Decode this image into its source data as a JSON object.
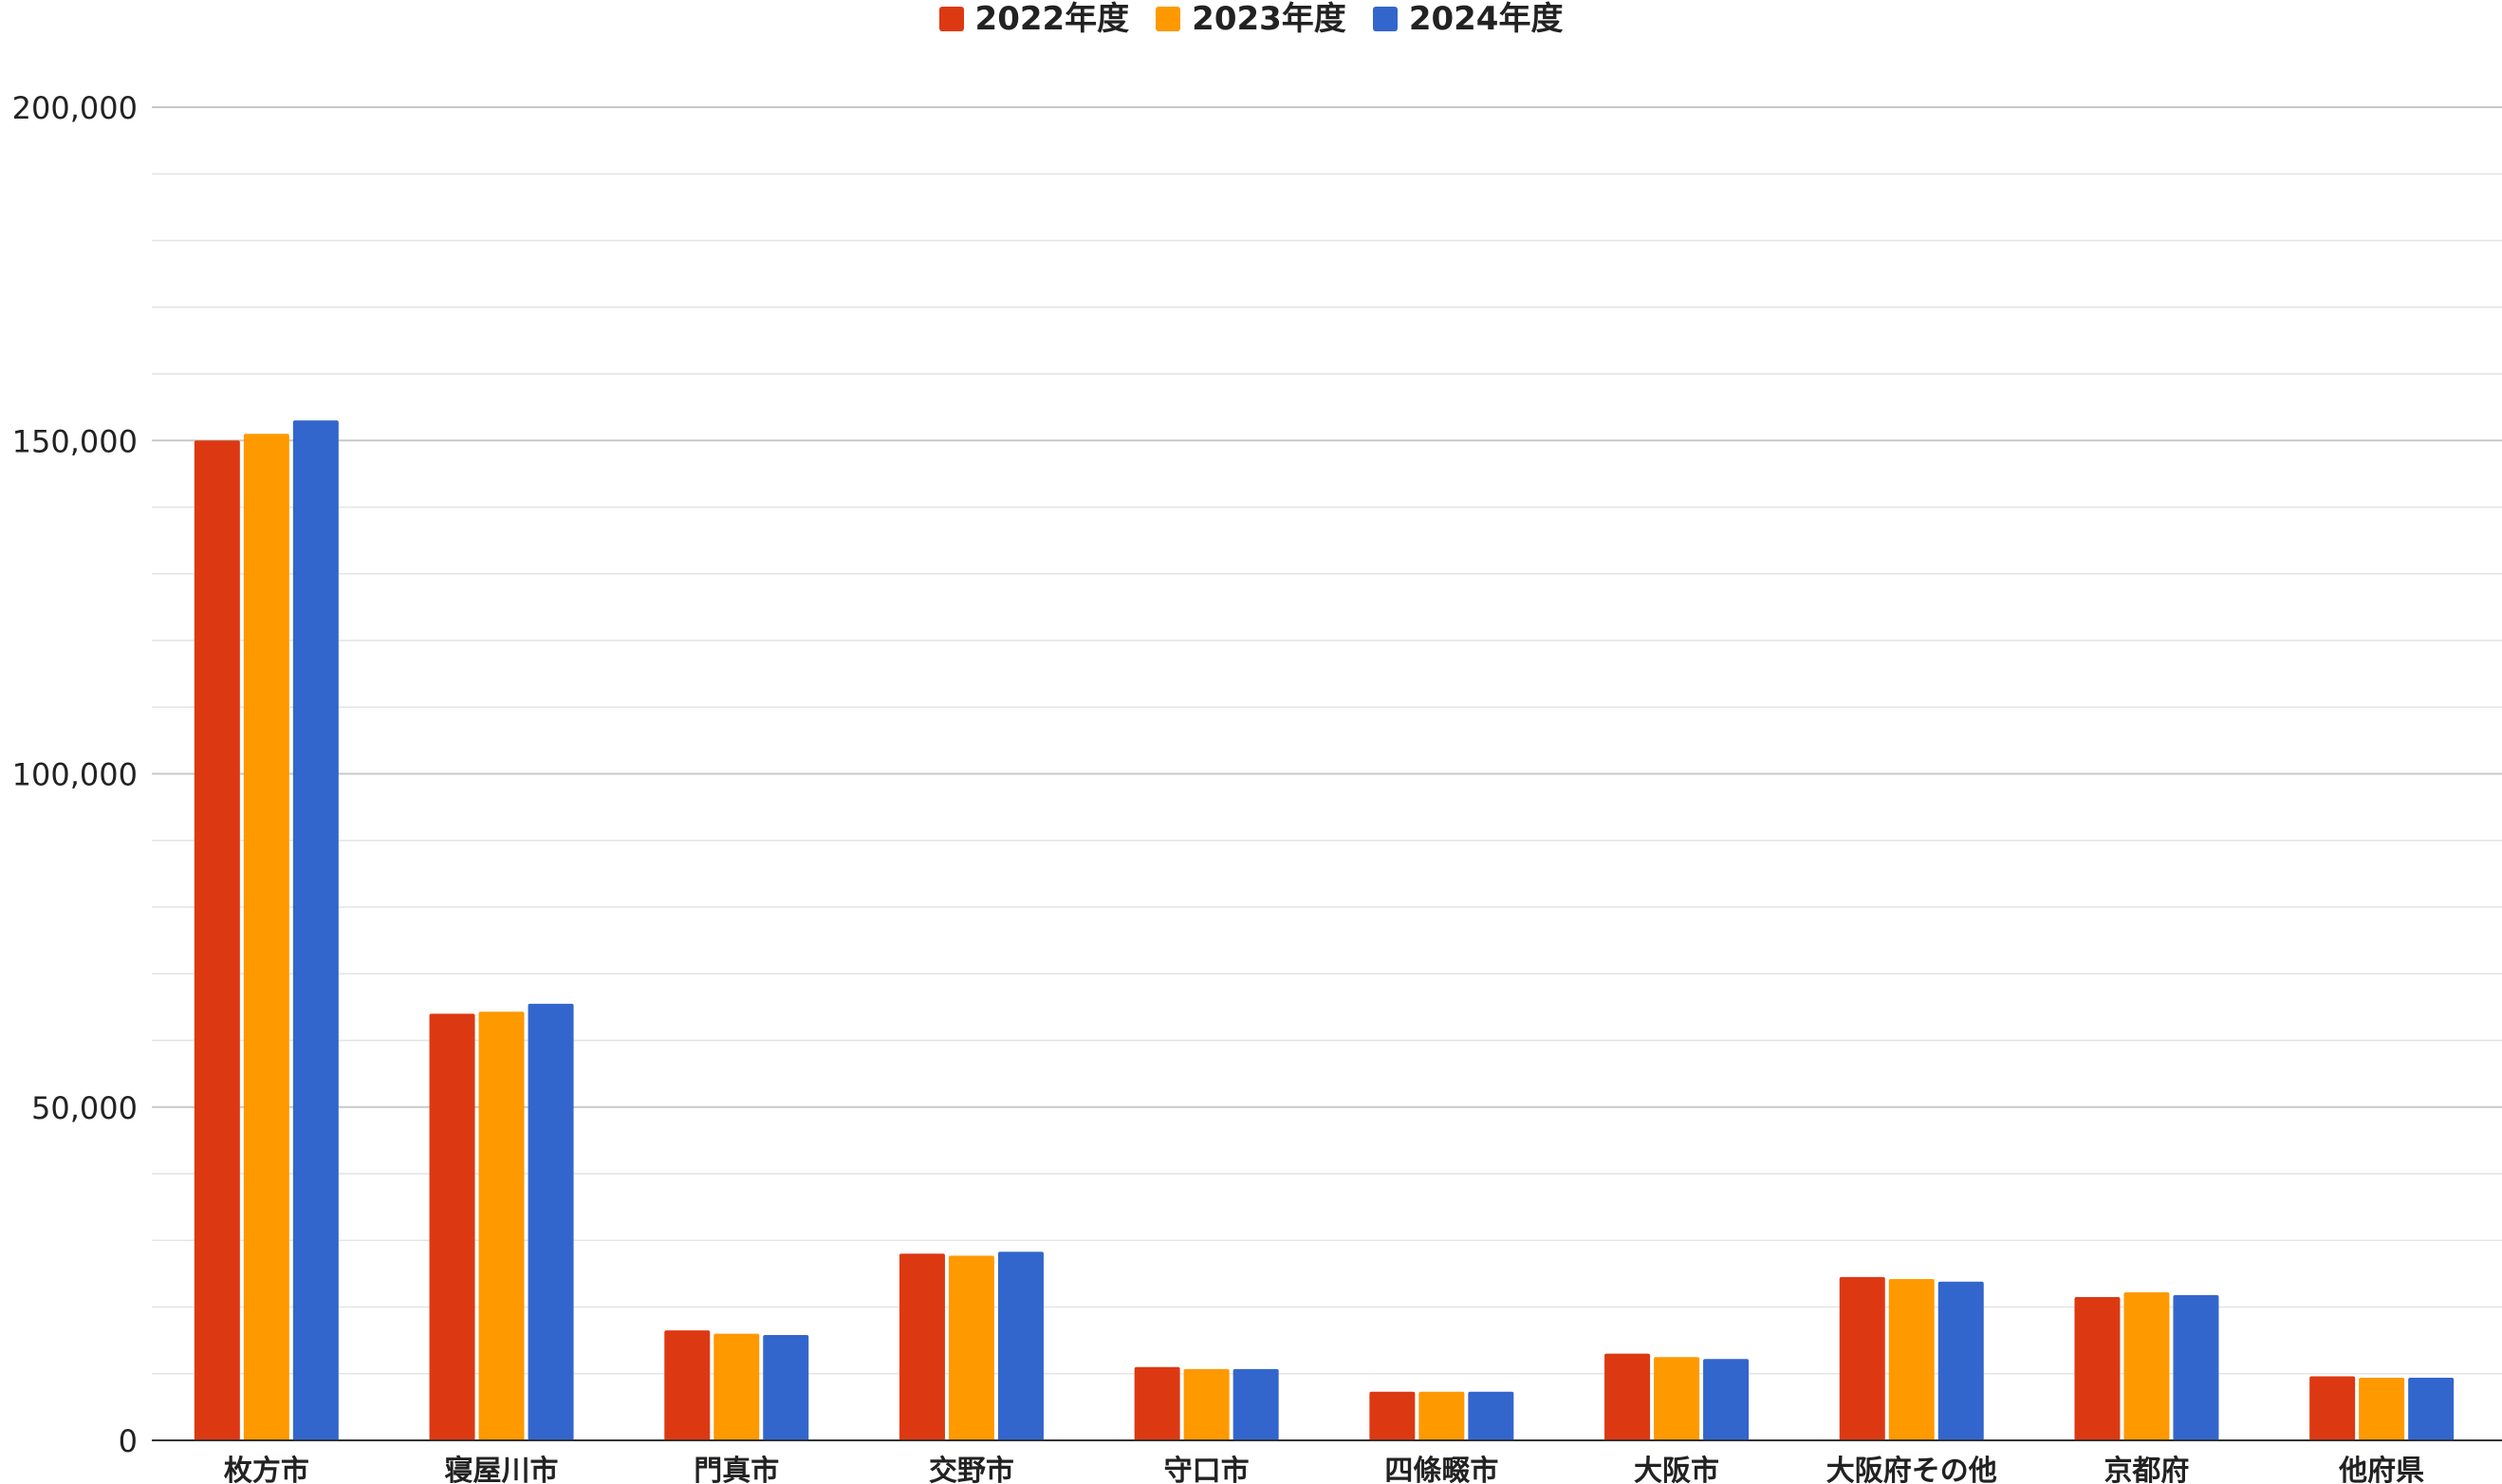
{
  "chart_data": {
    "type": "bar",
    "categories": [
      "枚方市",
      "寝屋川市",
      "門真市",
      "交野市",
      "守口市",
      "四條畷市",
      "大阪市",
      "大阪府その他",
      "京都府",
      "他府県"
    ],
    "series": [
      {
        "name": "2022年度",
        "color": "#dc3912",
        "values": [
          150000,
          64000,
          16500,
          28000,
          11000,
          7300,
          13000,
          24500,
          21500,
          9600
        ]
      },
      {
        "name": "2023年度",
        "color": "#ff9900",
        "values": [
          151000,
          64300,
          16000,
          27700,
          10700,
          7300,
          12500,
          24200,
          22200,
          9400
        ]
      },
      {
        "name": "2024年度",
        "color": "#3366cc",
        "values": [
          153000,
          65500,
          15800,
          28300,
          10700,
          7300,
          12200,
          23800,
          21800,
          9400
        ]
      }
    ],
    "ylim": [
      0,
      200000
    ],
    "yticks": [
      0,
      50000,
      100000,
      150000,
      200000
    ],
    "ytick_labels": [
      "0",
      "50,000",
      "100,000",
      "150,000",
      "200,000"
    ],
    "grid": true,
    "legend_position": "top-center",
    "title": "",
    "xlabel": "",
    "ylabel": ""
  }
}
